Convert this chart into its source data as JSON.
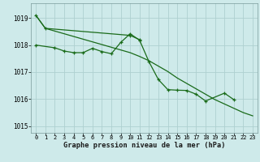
{
  "xlabel": "Graphe pression niveau de la mer (hPa)",
  "background_color": "#ceeaea",
  "grid_color": "#aed0d0",
  "line_color": "#1a6b1a",
  "hours": [
    0,
    1,
    2,
    3,
    4,
    5,
    6,
    7,
    8,
    9,
    10,
    11,
    12,
    13,
    14,
    15,
    16,
    17,
    18,
    19,
    20,
    21,
    22,
    23
  ],
  "series2": [
    1018.0,
    null,
    1017.9,
    1017.78,
    1017.72,
    1017.72,
    1017.88,
    1017.76,
    1017.68,
    1018.1,
    1018.42,
    1018.18,
    1017.38,
    1016.72,
    1016.35,
    1016.33,
    1016.32,
    1016.18,
    1015.93,
    null,
    1016.22,
    1015.98,
    null,
    null
  ],
  "series3": [
    1019.1,
    1018.62,
    1018.52,
    1018.42,
    1018.32,
    1018.22,
    1018.12,
    1018.02,
    1017.92,
    1017.82,
    1017.72,
    1017.58,
    1017.42,
    1017.22,
    1017.02,
    1016.78,
    1016.58,
    1016.38,
    1016.18,
    1015.98,
    1015.82,
    1015.66,
    1015.5,
    1015.38
  ],
  "series1": [
    1019.1,
    1018.62,
    null,
    null,
    null,
    null,
    null,
    null,
    null,
    null,
    1018.36,
    1018.2,
    null,
    null,
    null,
    null,
    null,
    null,
    null,
    null,
    null,
    null,
    null,
    null
  ],
  "ylim": [
    1014.75,
    1019.55
  ],
  "yticks": [
    1015,
    1016,
    1017,
    1018,
    1019
  ],
  "xticks": [
    0,
    1,
    2,
    3,
    4,
    5,
    6,
    7,
    8,
    9,
    10,
    11,
    12,
    13,
    14,
    15,
    16,
    17,
    18,
    19,
    20,
    21,
    22,
    23
  ]
}
